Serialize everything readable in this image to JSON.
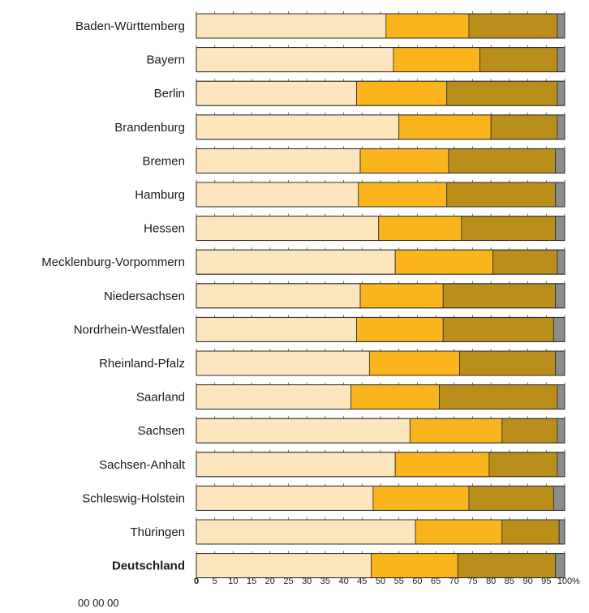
{
  "chart_data": {
    "type": "bar",
    "orientation": "horizontal",
    "stacked": true,
    "categories": [
      "Baden-Württemberg",
      "Bayern",
      "Berlin",
      "Brandenburg",
      "Bremen",
      "Hamburg",
      "Hessen",
      "Mecklenburg-Vorpommern",
      "Niedersachsen",
      "Nordrhein-Westfalen",
      "Rheinland-Pfalz",
      "Saarland",
      "Sachsen",
      "Sachsen-Anhalt",
      "Schleswig-Holstein",
      "Thüringen",
      "Deutschland"
    ],
    "bold_category": "Deutschland",
    "series": [
      {
        "color": "#fde6bd",
        "values": [
          51.5,
          53.5,
          43.5,
          55.0,
          44.5,
          44.0,
          49.5,
          54.0,
          44.5,
          43.5,
          47.0,
          42.0,
          58.0,
          54.0,
          48.0,
          59.5,
          47.5
        ]
      },
      {
        "color": "#f9b51b",
        "values": [
          22.5,
          23.5,
          24.5,
          25.0,
          24.0,
          24.0,
          22.5,
          26.5,
          22.5,
          23.5,
          24.5,
          24.0,
          25.0,
          25.5,
          26.0,
          23.5,
          23.5
        ]
      },
      {
        "color": "#b98e1b",
        "values": [
          24.0,
          21.0,
          30.0,
          18.0,
          29.0,
          29.5,
          25.5,
          17.5,
          30.5,
          30.0,
          26.0,
          32.0,
          15.0,
          18.5,
          23.0,
          15.5,
          26.5
        ]
      },
      {
        "color": "#8c8c8c",
        "values": [
          2.0,
          2.0,
          2.0,
          2.0,
          2.5,
          2.5,
          2.5,
          2.0,
          2.5,
          3.0,
          2.5,
          2.0,
          2.0,
          2.0,
          3.0,
          1.5,
          2.5
        ]
      }
    ],
    "x_ticks": [
      "0",
      "5",
      "10",
      "15",
      "20",
      "25",
      "30",
      "35",
      "40",
      "45",
      "50",
      "55",
      "60",
      "65",
      "70",
      "75",
      "80",
      "85",
      "90",
      "95",
      "100"
    ],
    "x_unit": "%",
    "xlim": [
      0,
      100
    ],
    "title": "",
    "xlabel": "",
    "ylabel": "",
    "legend": "none",
    "grid": false
  },
  "footer": {
    "note": "00 00 00"
  }
}
